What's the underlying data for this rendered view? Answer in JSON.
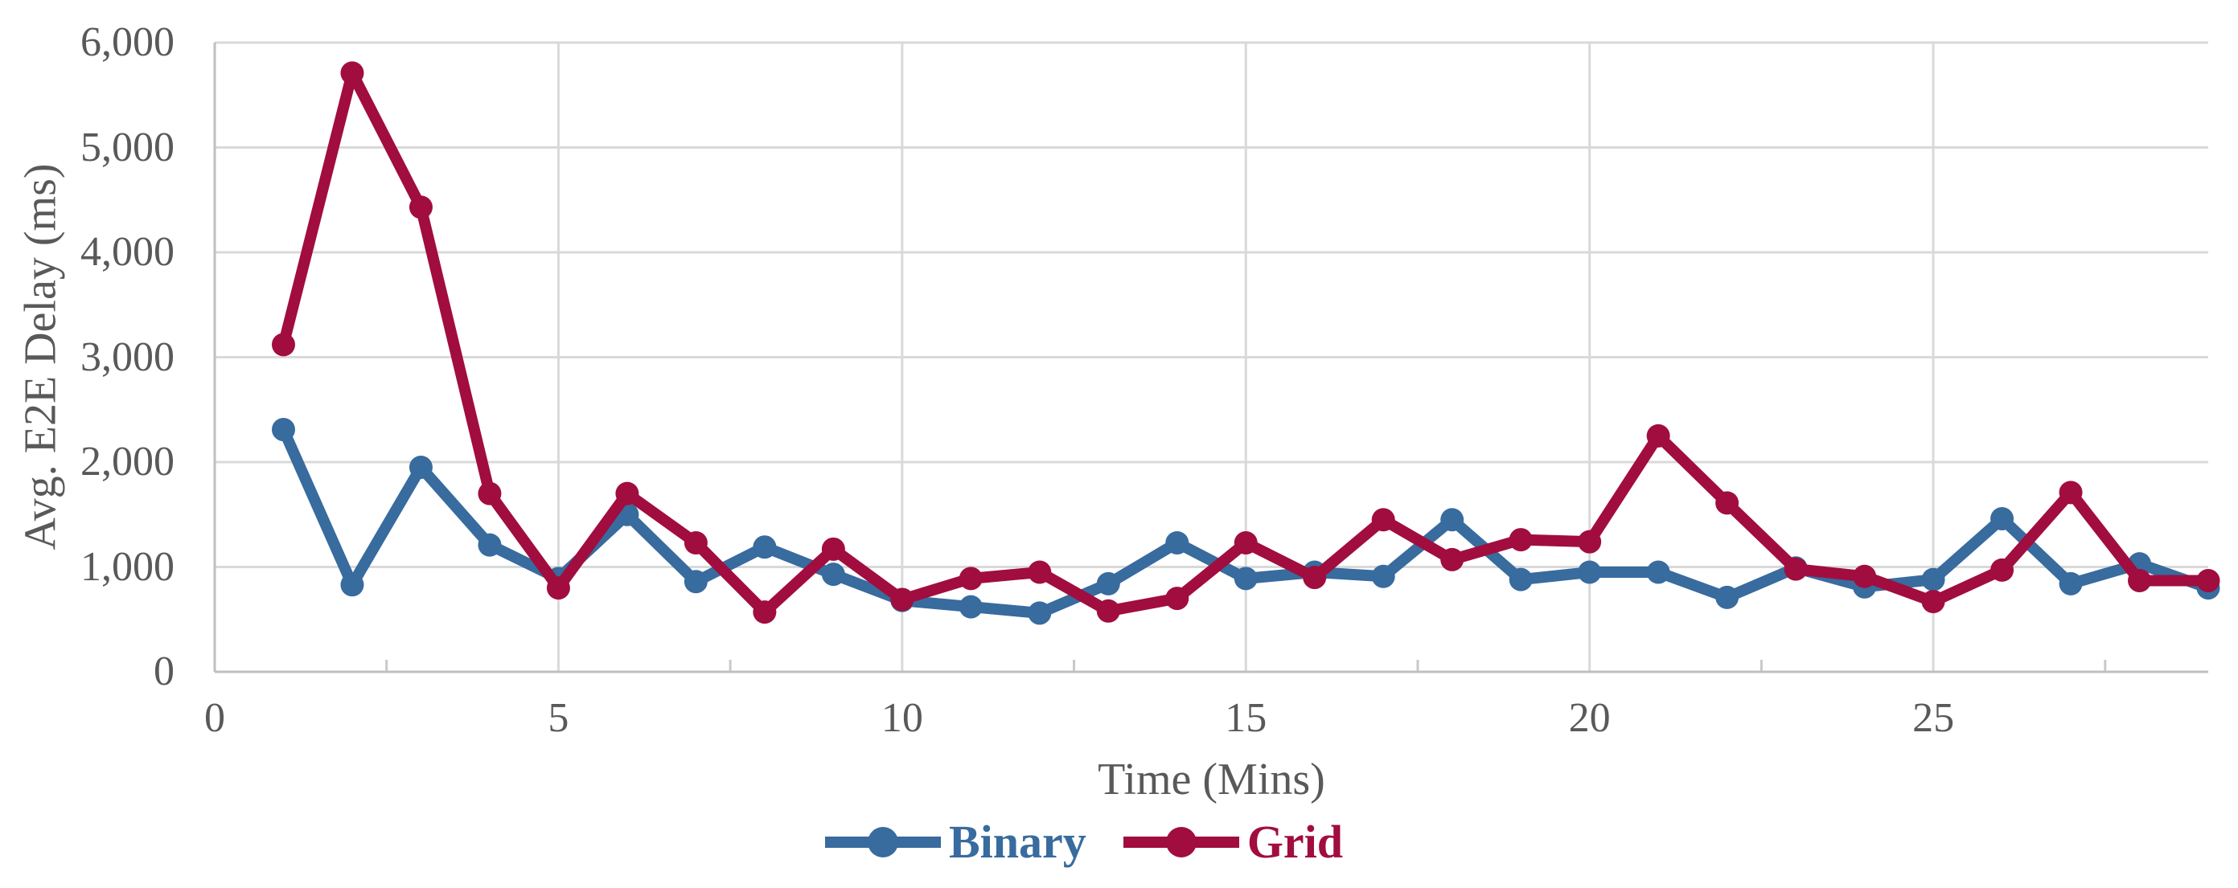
{
  "chart_data": {
    "type": "line",
    "title": "",
    "xlabel": "Time (Mins)",
    "ylabel": "Avg. E2E Delay (ms)",
    "x": [
      1,
      2,
      3,
      4,
      5,
      6,
      7,
      8,
      9,
      10,
      11,
      12,
      13,
      14,
      15,
      16,
      17,
      18,
      19,
      20,
      21,
      22,
      23,
      24,
      25,
      26,
      27,
      28,
      29
    ],
    "series": [
      {
        "name": "Binary",
        "color": "#386B9E",
        "values": [
          2310,
          830,
          1950,
          1210,
          890,
          1500,
          860,
          1190,
          930,
          680,
          620,
          560,
          840,
          1230,
          890,
          950,
          910,
          1450,
          880,
          950,
          950,
          710,
          990,
          810,
          880,
          1460,
          840,
          1030,
          800
        ]
      },
      {
        "name": "Grid",
        "color": "#A10D3E",
        "values": [
          3120,
          5710,
          4430,
          1700,
          800,
          1700,
          1230,
          570,
          1170,
          690,
          890,
          950,
          580,
          700,
          1230,
          900,
          1450,
          1070,
          1260,
          1240,
          2250,
          1610,
          980,
          910,
          670,
          970,
          1710,
          870,
          870
        ]
      }
    ],
    "xlim": [
      0,
      29
    ],
    "ylim": [
      0,
      6000
    ],
    "y_ticks": [
      0,
      1000,
      2000,
      3000,
      4000,
      5000,
      6000
    ],
    "y_tick_labels": [
      "0",
      "1,000",
      "2,000",
      "3,000",
      "4,000",
      "5,000",
      "6,000"
    ],
    "x_ticks": [
      0,
      5,
      10,
      15,
      20,
      25
    ],
    "x_tick_labels": [
      "0",
      "5",
      "10",
      "15",
      "20",
      "25"
    ],
    "x_minor_ticks": [
      2.5,
      7.5,
      12.5,
      17.5,
      22.5,
      27.5
    ],
    "grid": "horizontal gridlines at each 1,000; vertical gridlines at each 5 mins",
    "legend_position": "bottom-center"
  },
  "styles": {
    "axis_color": "#BFBFBF",
    "grid_color": "#D9D9D9",
    "minor_tick_color": "#C9C9C9",
    "label_color": "#595959",
    "background": "#FFFFFF"
  }
}
